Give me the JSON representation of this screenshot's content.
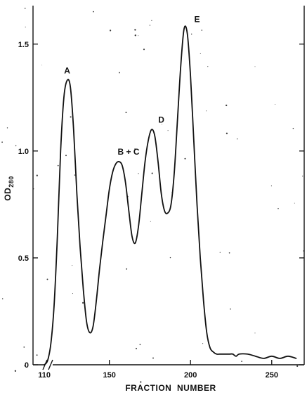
{
  "chart_data": {
    "type": "line",
    "title": "",
    "xlabel": "FRACTION  NUMBER",
    "ylabel": "OD",
    "ylabel_subscript": "280",
    "xlim": [
      103,
      270
    ],
    "ylim": [
      0,
      1.68
    ],
    "x_ticks": [
      110,
      150,
      200,
      250
    ],
    "x_tick_labels": [
      "110",
      "150",
      "200",
      "250"
    ],
    "y_ticks": [
      0,
      0.5,
      1.0,
      1.5
    ],
    "y_tick_labels": [
      "0",
      "0.5",
      "1.0",
      "1.5"
    ],
    "axis_break": true,
    "grid": false,
    "series": [
      {
        "x": [
          110,
          112,
          114,
          116,
          118,
          120,
          122,
          124,
          126,
          128,
          130,
          132,
          134,
          136,
          138,
          140,
          142,
          144,
          146,
          148,
          150,
          152,
          154,
          156,
          158,
          160,
          162,
          164,
          166,
          168,
          170,
          172,
          174,
          176,
          178,
          180,
          182,
          184,
          186,
          188,
          190,
          192,
          194,
          196,
          198,
          200,
          202,
          204,
          206,
          208,
          210,
          212,
          214,
          216,
          218,
          220,
          222,
          224,
          226,
          228,
          230,
          235,
          240,
          245,
          250,
          255,
          260,
          265
        ],
        "y": [
          0.0,
          0.02,
          0.1,
          0.28,
          0.6,
          1.0,
          1.25,
          1.33,
          1.3,
          1.1,
          0.8,
          0.55,
          0.35,
          0.2,
          0.15,
          0.18,
          0.3,
          0.45,
          0.58,
          0.7,
          0.82,
          0.9,
          0.94,
          0.95,
          0.93,
          0.85,
          0.72,
          0.6,
          0.57,
          0.65,
          0.8,
          0.95,
          1.05,
          1.1,
          1.07,
          0.95,
          0.8,
          0.72,
          0.71,
          0.75,
          0.9,
          1.15,
          1.4,
          1.57,
          1.55,
          1.35,
          1.05,
          0.75,
          0.5,
          0.3,
          0.15,
          0.08,
          0.06,
          0.05,
          0.05,
          0.05,
          0.05,
          0.05,
          0.05,
          0.04,
          0.05,
          0.05,
          0.04,
          0.03,
          0.04,
          0.03,
          0.04,
          0.03
        ]
      }
    ],
    "annotations": [
      {
        "text": "A",
        "x": 124,
        "y": 1.33
      },
      {
        "text": "B + C",
        "x": 161,
        "y": 0.95
      },
      {
        "text": "D",
        "x": 182,
        "y": 1.1
      },
      {
        "text": "E",
        "x": 204,
        "y": 1.57
      }
    ]
  }
}
